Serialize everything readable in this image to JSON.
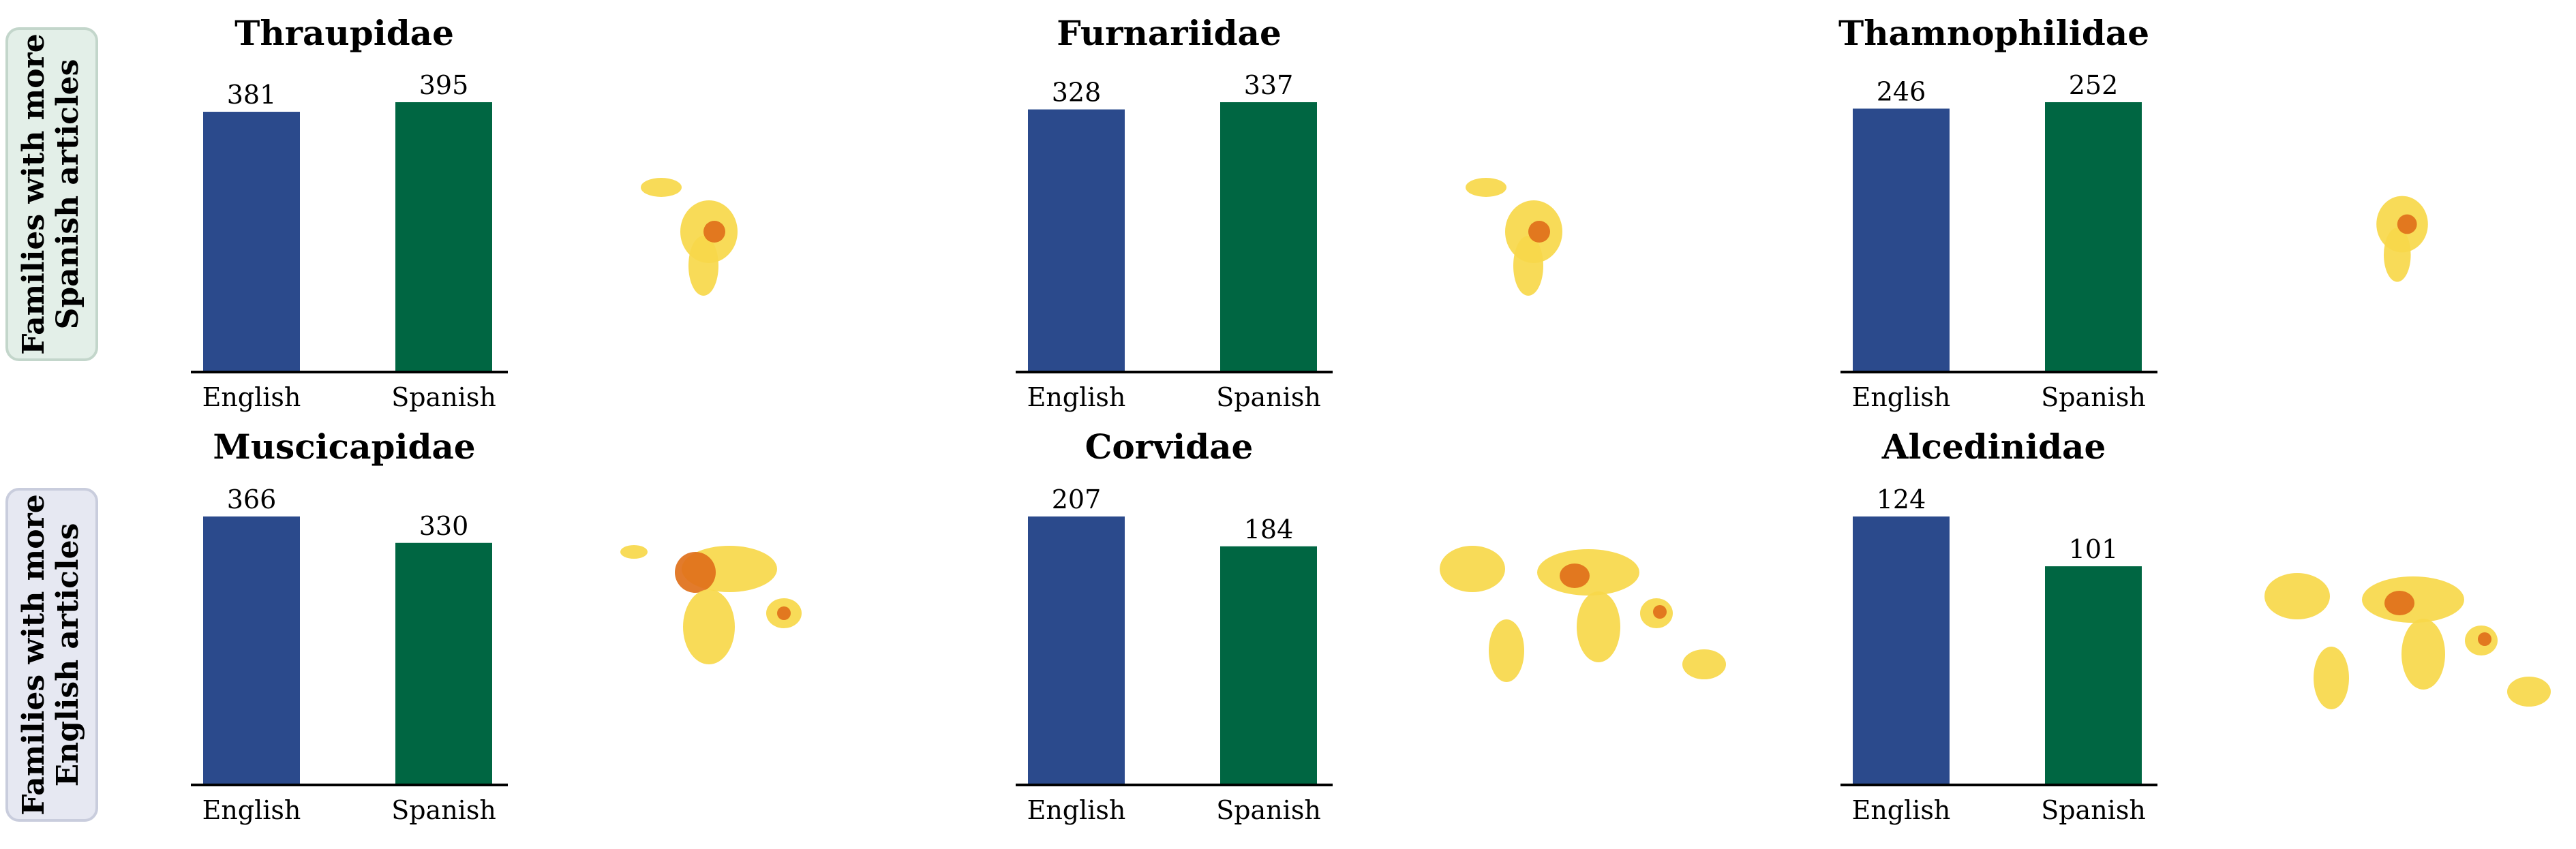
{
  "row_labels": [
    {
      "line1": "Families with more",
      "line2": "Spanish articles",
      "bg": "#e3efe8",
      "border": "#c3d6cb"
    },
    {
      "line1": "Families with more",
      "line2": "English articles",
      "bg": "#e6e8f2",
      "border": "#c9cddd"
    }
  ],
  "colors": {
    "english": "#2b4a8c",
    "spanish": "#006642",
    "map_light": "#f7d84a",
    "map_dark": "#e0701a"
  },
  "chart_data": [
    {
      "type": "bar",
      "title": "Thraupidae",
      "categories": [
        "English",
        "Spanish"
      ],
      "values": [
        381,
        395
      ],
      "map": "americas"
    },
    {
      "type": "bar",
      "title": "Furnariidae",
      "categories": [
        "English",
        "Spanish"
      ],
      "values": [
        328,
        337
      ],
      "map": "americas"
    },
    {
      "type": "bar",
      "title": "Thamnophilidae",
      "categories": [
        "English",
        "Spanish"
      ],
      "values": [
        246,
        252
      ],
      "map": "south-america"
    },
    {
      "type": "bar",
      "title": "Muscicapidae",
      "categories": [
        "English",
        "Spanish"
      ],
      "values": [
        366,
        330
      ],
      "map": "old-world"
    },
    {
      "type": "bar",
      "title": "Corvidae",
      "categories": [
        "English",
        "Spanish"
      ],
      "values": [
        207,
        184
      ],
      "map": "world"
    },
    {
      "type": "bar",
      "title": "Alcedinidae",
      "categories": [
        "English",
        "Spanish"
      ],
      "values": [
        124,
        101
      ],
      "map": "world"
    }
  ]
}
